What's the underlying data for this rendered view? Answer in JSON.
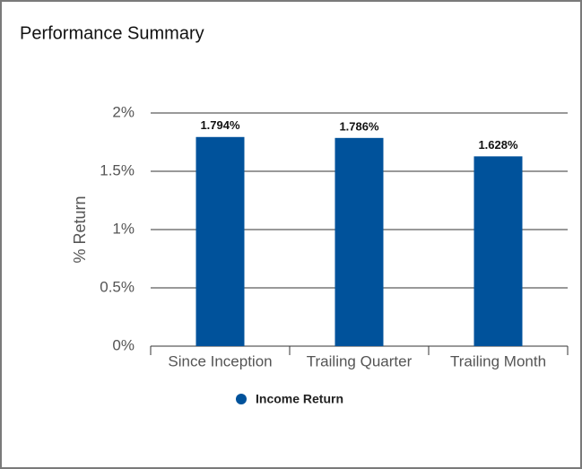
{
  "chart_data": {
    "type": "bar",
    "title": "Performance Summary",
    "y_label": "% Return",
    "categories": [
      "Since Inception",
      "Trailing Quarter",
      "Trailing Month"
    ],
    "series": [
      {
        "name": "Income Return",
        "color": "#00529b",
        "values": [
          1.794,
          1.786,
          1.628
        ],
        "value_labels": [
          "1.794%",
          "1.786%",
          "1.628%"
        ]
      }
    ],
    "ylim": [
      0,
      2
    ],
    "yticks": [
      {
        "value": 0,
        "label": "0%"
      },
      {
        "value": 0.5,
        "label": "0.5%"
      },
      {
        "value": 1,
        "label": "1%"
      },
      {
        "value": 1.5,
        "label": "1.5%"
      },
      {
        "value": 2,
        "label": "2%"
      }
    ],
    "grid": true
  }
}
